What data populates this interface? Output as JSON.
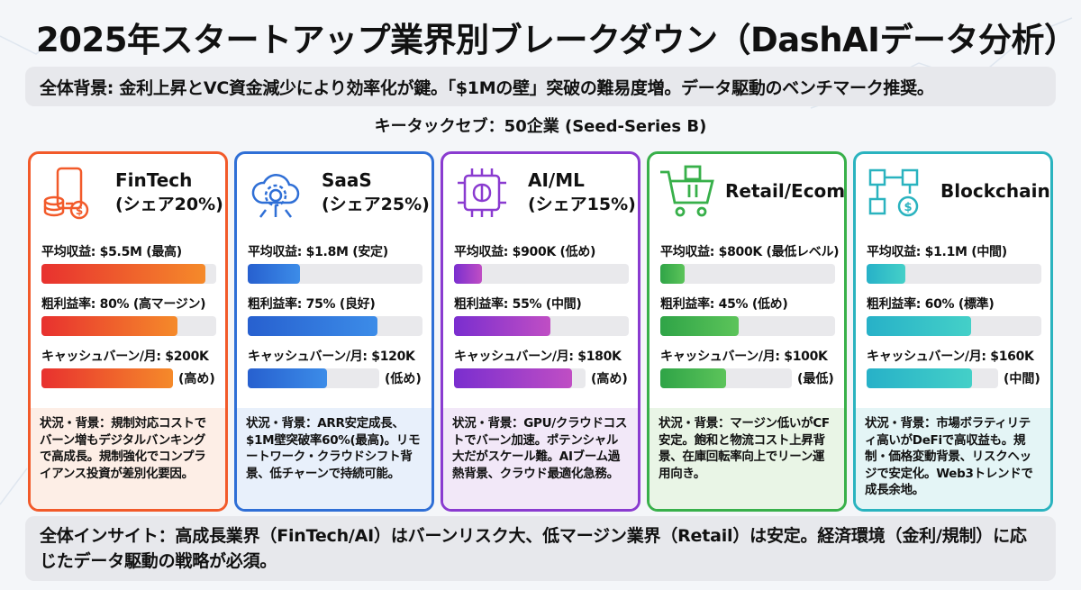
{
  "title": "2025年スタートアップ業界別ブレークダウン（DashAIデータ分析）",
  "background_banner": "全体背景: 金利上昇とVC資金減少により効率化が鍵。「$1Mの壁」突破の難易度増。データ駆動のベンチマーク推奨。",
  "sample_label": "キータックセブ：50企業 (Seed-Series B)",
  "insight_banner": "全体インサイト：高成長業界（FinTech/AI）はバーンリスク大、低マージン業界（Retail）は安定。経済環境（金利/規制）に応じたデータ駆動の戦略が必須。",
  "cards": [
    {
      "name": "FinTech",
      "share": "(シェア20%)",
      "icon": "phone-coins-icon",
      "color": "#f25a2a",
      "grad_start": "#e8312f",
      "grad_end": "#f58a2a",
      "desc_bg": "#fdeee6",
      "revenue_label": "平均収益: $5.5M (最高)",
      "revenue_fill": 0.94,
      "margin_label": "粗利益率: 80% (高マージン)",
      "margin_fill": 0.78,
      "burn_label": "キャッシュバーン/月: $200K",
      "burn_fill": 1.0,
      "burn_note": "(高め)",
      "desc": "状況・背景：規制対応コストでバーン増もデジタルバンキングで高成長。規制強化でコンプライアンス投資が差別化要因。"
    },
    {
      "name": "SaaS",
      "share": "(シェア25%)",
      "icon": "cloud-gear-icon",
      "color": "#2f6fd6",
      "grad_start": "#2760cf",
      "grad_end": "#3c8ce8",
      "desc_bg": "#e8f0fb",
      "revenue_label": "平均収益: $1.8M (安定)",
      "revenue_fill": 0.3,
      "margin_label": "粗利益率: 75% (良好)",
      "margin_fill": 0.74,
      "burn_label": "キャッシュバーン/月: $120K",
      "burn_fill": 0.6,
      "burn_note": "(低め)",
      "desc": "状況・背景：ARR安定成長、$1M壁突破率60%(最高)。リモートワーク・クラウドシフト背景、低チャーンで持続可能。"
    },
    {
      "name": "AI/ML",
      "share": "(シェア15%)",
      "icon": "ai-chip-icon",
      "color": "#8a3bd0",
      "grad_start": "#7a2ecf",
      "grad_end": "#c04ec4",
      "desc_bg": "#f2e8f8",
      "revenue_label": "平均収益: $900K (低め)",
      "revenue_fill": 0.16,
      "margin_label": "粗利益率: 55% (中間)",
      "margin_fill": 0.55,
      "burn_label": "キャッシュバーン/月: $180K",
      "burn_fill": 0.9,
      "burn_note": "(高め)",
      "desc": "状況・背景：GPU/クラウドコストでバーン加速。ポテンシャル大だがスケール難。AIブーム過熱背景、クラウド最適化急務。"
    },
    {
      "name": "Retail/Ecom",
      "share": "",
      "icon": "shopping-cart-icon",
      "color": "#38b04a",
      "grad_start": "#2fa447",
      "grad_end": "#5cc45a",
      "desc_bg": "#e9f5e6",
      "revenue_label": "平均収益: $800K (最低レベル)",
      "revenue_fill": 0.14,
      "margin_label": "粗利益率: 45% (低め)",
      "margin_fill": 0.45,
      "burn_label": "キャッシュバーン/月: $100K",
      "burn_fill": 0.5,
      "burn_note": "(最低)",
      "desc": "状況・背景：マージン低いがCF安定。飽和と物流コスト上昇背景、在庫回転率向上でリーン運用向き。"
    },
    {
      "name": "Blockchain",
      "share": "",
      "icon": "blockchain-icon",
      "color": "#2ab3bf",
      "grad_start": "#27b1c8",
      "grad_end": "#44d0c8",
      "desc_bg": "#e4f5f6",
      "revenue_label": "平均収益: $1.1M (中間)",
      "revenue_fill": 0.22,
      "margin_label": "粗利益率: 60% (標準)",
      "margin_fill": 0.6,
      "burn_label": "キャッシュバーン/月: $160K",
      "burn_fill": 0.8,
      "burn_note": "(中間)",
      "desc": "状況・背景：市場ボラティリティ高いがDeFiで高収益も。規制・価格変動背景、リスクヘッジで安定化。Web3トレンドで成長余地。"
    }
  ]
}
